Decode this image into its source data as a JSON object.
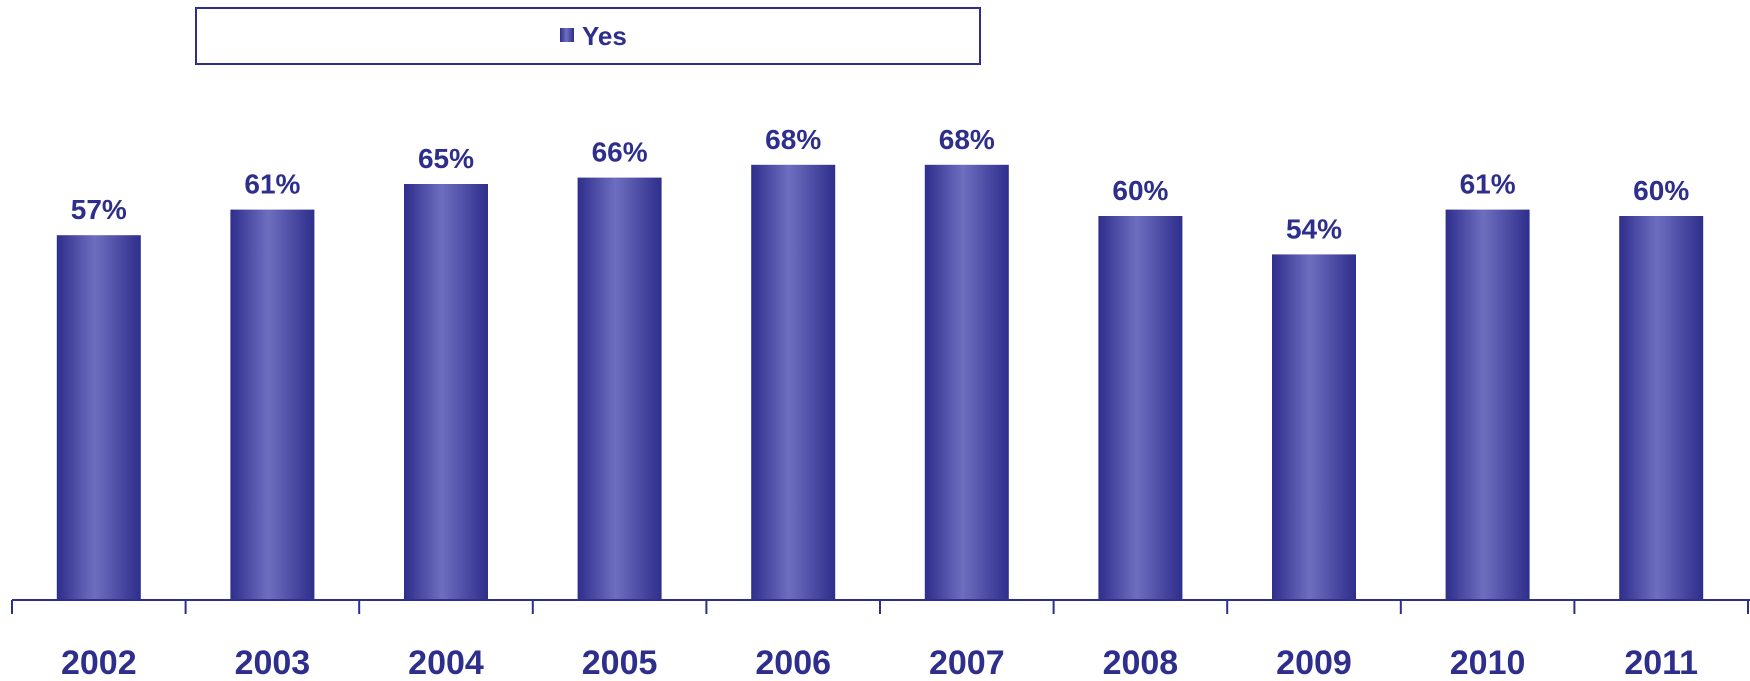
{
  "chart_data": {
    "type": "bar",
    "categories": [
      "2002",
      "2003",
      "2004",
      "2005",
      "2006",
      "2007",
      "2008",
      "2009",
      "2010",
      "2011"
    ],
    "series": [
      {
        "name": "Yes",
        "values": [
          57,
          61,
          65,
          66,
          68,
          68,
          60,
          54,
          61,
          60
        ]
      }
    ],
    "data_labels": [
      "57%",
      "61%",
      "65%",
      "66%",
      "68%",
      "68%",
      "60%",
      "54%",
      "61%",
      "60%"
    ],
    "ylim": [
      0,
      100
    ],
    "grid": false,
    "legend": {
      "position": "top",
      "entries": [
        "Yes"
      ]
    },
    "colors": {
      "bar": "#4a4aa8",
      "bar_dark": "#2e2e8c",
      "bar_light": "#6e6ec0",
      "text": "#2e2e8c"
    }
  }
}
